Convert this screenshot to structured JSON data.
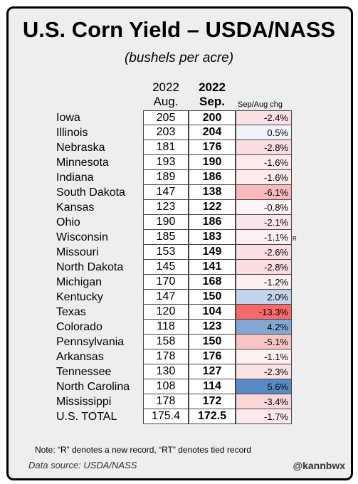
{
  "header": {
    "title": "U.S. Corn Yield – USDA/NASS",
    "subtitle": "(bushels per acre)",
    "col_aug_year": "2022",
    "col_aug_month": "Aug.",
    "col_sep_year": "2022",
    "col_sep_month": "Sep.",
    "col_chg": "Sep/Aug chg"
  },
  "footer": {
    "note": "Note: “R” denotes a new record, “RT” denotes tied record",
    "source": "Data source: USDA/NASS",
    "handle": "@kannbwx"
  },
  "colors": {
    "negative": "#f8696b",
    "positive": "#5a8ac6",
    "neutral": "#fcfcff"
  },
  "chart_data": {
    "type": "table",
    "title": "U.S. Corn Yield – USDA/NASS",
    "subtitle": "(bushels per acre)",
    "columns": [
      "",
      "2022 Aug.",
      "2022 Sep.",
      "Sep/Aug chg"
    ],
    "rows": [
      {
        "state": "Iowa",
        "aug": "205",
        "sep": "200",
        "chg": "-2.4%",
        "chg_value": -2.4,
        "mark": ""
      },
      {
        "state": "Illinois",
        "aug": "203",
        "sep": "204",
        "chg": "0.5%",
        "chg_value": 0.5,
        "mark": ""
      },
      {
        "state": "Nebraska",
        "aug": "181",
        "sep": "176",
        "chg": "-2.8%",
        "chg_value": -2.8,
        "mark": ""
      },
      {
        "state": "Minnesota",
        "aug": "193",
        "sep": "190",
        "chg": "-1.6%",
        "chg_value": -1.6,
        "mark": ""
      },
      {
        "state": "Indiana",
        "aug": "189",
        "sep": "186",
        "chg": "-1.6%",
        "chg_value": -1.6,
        "mark": ""
      },
      {
        "state": "South Dakota",
        "aug": "147",
        "sep": "138",
        "chg": "-6.1%",
        "chg_value": -6.1,
        "mark": ""
      },
      {
        "state": "Kansas",
        "aug": "123",
        "sep": "122",
        "chg": "-0.8%",
        "chg_value": -0.8,
        "mark": ""
      },
      {
        "state": "Ohio",
        "aug": "190",
        "sep": "186",
        "chg": "-2.1%",
        "chg_value": -2.1,
        "mark": ""
      },
      {
        "state": "Wisconsin",
        "aug": "185",
        "sep": "183",
        "chg": "-1.1%",
        "chg_value": -1.1,
        "mark": "R"
      },
      {
        "state": "Missouri",
        "aug": "153",
        "sep": "149",
        "chg": "-2.6%",
        "chg_value": -2.6,
        "mark": ""
      },
      {
        "state": "North Dakota",
        "aug": "145",
        "sep": "141",
        "chg": "-2.8%",
        "chg_value": -2.8,
        "mark": ""
      },
      {
        "state": "Michigan",
        "aug": "170",
        "sep": "168",
        "chg": "-1.2%",
        "chg_value": -1.2,
        "mark": ""
      },
      {
        "state": "Kentucky",
        "aug": "147",
        "sep": "150",
        "chg": "2.0%",
        "chg_value": 2.0,
        "mark": ""
      },
      {
        "state": "Texas",
        "aug": "120",
        "sep": "104",
        "chg": "-13.3%",
        "chg_value": -13.3,
        "mark": ""
      },
      {
        "state": "Colorado",
        "aug": "118",
        "sep": "123",
        "chg": "4.2%",
        "chg_value": 4.2,
        "mark": ""
      },
      {
        "state": "Pennsylvania",
        "aug": "158",
        "sep": "150",
        "chg": "-5.1%",
        "chg_value": -5.1,
        "mark": ""
      },
      {
        "state": "Arkansas",
        "aug": "178",
        "sep": "176",
        "chg": "-1.1%",
        "chg_value": -1.1,
        "mark": ""
      },
      {
        "state": "Tennessee",
        "aug": "130",
        "sep": "127",
        "chg": "-2.3%",
        "chg_value": -2.3,
        "mark": ""
      },
      {
        "state": "North Carolina",
        "aug": "108",
        "sep": "114",
        "chg": "5.6%",
        "chg_value": 5.6,
        "mark": ""
      },
      {
        "state": "Mississippi",
        "aug": "178",
        "sep": "172",
        "chg": "-3.4%",
        "chg_value": -3.4,
        "mark": ""
      },
      {
        "state": "U.S. TOTAL",
        "aug": "175.4",
        "sep": "172.5",
        "chg": "-1.7%",
        "chg_value": -1.7,
        "mark": ""
      }
    ]
  }
}
